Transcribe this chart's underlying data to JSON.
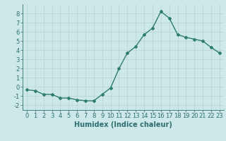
{
  "x": [
    0,
    1,
    2,
    3,
    4,
    5,
    6,
    7,
    8,
    9,
    10,
    11,
    12,
    13,
    14,
    15,
    16,
    17,
    18,
    19,
    20,
    21,
    22,
    23
  ],
  "y": [
    -0.3,
    -0.4,
    -0.8,
    -0.8,
    -1.2,
    -1.2,
    -1.4,
    -1.5,
    -1.5,
    -0.8,
    -0.1,
    2.0,
    3.7,
    4.4,
    5.7,
    6.4,
    8.2,
    7.5,
    5.7,
    5.4,
    5.2,
    5.0,
    4.3,
    3.7
  ],
  "line_color": "#2e7d6e",
  "marker": "D",
  "marker_size": 2,
  "linewidth": 1.0,
  "xlabel": "Humidex (Indice chaleur)",
  "xlim": [
    -0.5,
    23.5
  ],
  "ylim": [
    -2.5,
    9.0
  ],
  "yticks": [
    -2,
    -1,
    0,
    1,
    2,
    3,
    4,
    5,
    6,
    7,
    8
  ],
  "xticks": [
    0,
    1,
    2,
    3,
    4,
    5,
    6,
    7,
    8,
    9,
    10,
    11,
    12,
    13,
    14,
    15,
    16,
    17,
    18,
    19,
    20,
    21,
    22,
    23
  ],
  "bg_color": "#cde8e8",
  "grid_color": "#b8d0d0",
  "text_color": "#2e6e6e",
  "tick_fontsize": 6,
  "xlabel_fontsize": 7
}
